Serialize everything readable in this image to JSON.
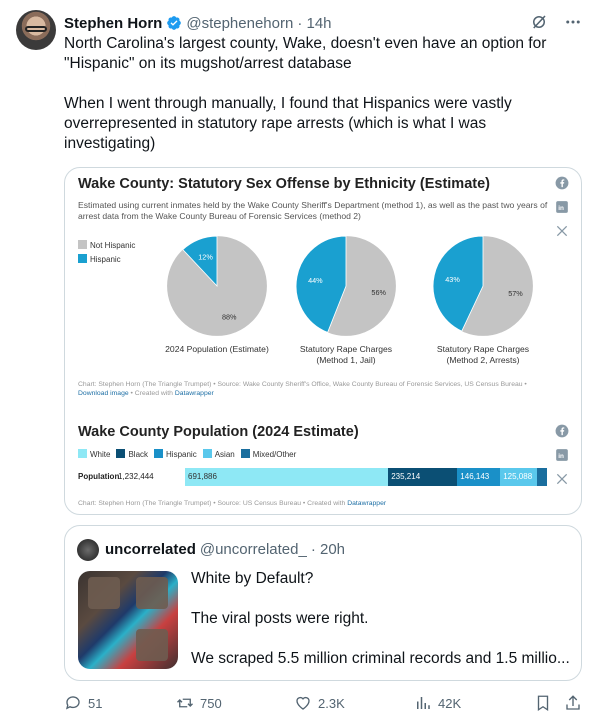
{
  "tweet": {
    "author_name": "Stephen Horn",
    "author_handle": "@stephenehorn",
    "time": "· 14h",
    "para1": "North Carolina's largest county, Wake, doesn't even have an option for \"Hispanic\" on its mugshot/arrest database",
    "para2": "When I went through manually, I found that Hispanics were vastly overrepresented in statutory rape arrests (which is what I was investigating)"
  },
  "card": {
    "title": "Wake County: Statutory Sex Offense by Ethnicity (Estimate)",
    "subtitle": "Estimated using current inmates held by the Wake County Sheriff's Department (method 1), as well as the past two years of arrest data from the Wake County Bureau of Forensic Services (method 2)",
    "legend": [
      "Not Hispanic",
      "Hispanic"
    ],
    "footer1": "Chart: Stephen Horn (The Triangle Trumpet) • Source: Wake County Sheriff's Office, Wake County Bureau of Forensic Services, US Census Bureau •",
    "footer1_link": "Download image",
    "footer1_tail": "• Created with",
    "footer1_link2": "Datawrapper",
    "title2": "Wake County Population (2024 Estimate)",
    "legend2": [
      "White",
      "Black",
      "Hispanic",
      "Asian",
      "Mixed/Other"
    ],
    "row_label": "Population",
    "row_total": "1,232,444",
    "footer2": "Chart: Stephen Horn (The Triangle Trumpet) • Source: US Census Bureau • Created with",
    "footer2_link": "Datawrapper"
  },
  "chart_data": [
    {
      "type": "pie",
      "title": "Wake County: Statutory Sex Offense by Ethnicity (Estimate)",
      "pies": [
        {
          "label_line1": "2024 Population (Estimate)",
          "label_line2": "",
          "not_hispanic": 88,
          "hispanic": 12,
          "not_hispanic_label": "88%",
          "hispanic_label": "12%"
        },
        {
          "label_line1": "Statutory Rape Charges",
          "label_line2": "(Method 1, Jail)",
          "not_hispanic": 56,
          "hispanic": 44,
          "not_hispanic_label": "56%",
          "hispanic_label": "44%"
        },
        {
          "label_line1": "Statutory Rape Charges",
          "label_line2": "(Method 2, Arrests)",
          "not_hispanic": 57,
          "hispanic": 43,
          "not_hispanic_label": "57%",
          "hispanic_label": "43%"
        }
      ],
      "colors": {
        "not_hispanic": "#c4c4c4",
        "hispanic": "#1aa0d0"
      }
    },
    {
      "type": "bar",
      "title": "Wake County Population (2024 Estimate)",
      "categories": [
        "Population"
      ],
      "series": [
        {
          "name": "White",
          "value": 691886,
          "label": "691,886",
          "color": "#8ee8f5"
        },
        {
          "name": "Black",
          "value": 235214,
          "label": "235,214",
          "color": "#0b4f74"
        },
        {
          "name": "Hispanic",
          "value": 146143,
          "label": "146,143",
          "color": "#1a90c8"
        },
        {
          "name": "Asian",
          "value": 125088,
          "label": "125,088",
          "color": "#5ac8ec"
        },
        {
          "name": "Mixed/Other",
          "value": 34113,
          "label": "",
          "color": "#1a6e9e"
        }
      ]
    }
  ],
  "quote": {
    "name": "uncorrelated",
    "handle": "@uncorrelated_",
    "time": "· 20h",
    "line1": "White by Default?",
    "line2": "The viral posts were right.",
    "line3": "We scraped 5.5 million criminal records and 1.5 millio..."
  },
  "actions": {
    "replies": "51",
    "reposts": "750",
    "likes": "2.3K",
    "views": "42K"
  },
  "colors": {
    "accent": "#1d9bf0",
    "text": "#0f1419",
    "muted": "#536471",
    "border": "#cfd9de"
  },
  "icons": [
    "verified-badge-icon",
    "grok-icon",
    "more-icon",
    "facebook-icon",
    "linkedin-icon",
    "x-icon",
    "reply-icon",
    "repost-icon",
    "like-icon",
    "views-icon",
    "bookmark-icon",
    "share-icon"
  ]
}
